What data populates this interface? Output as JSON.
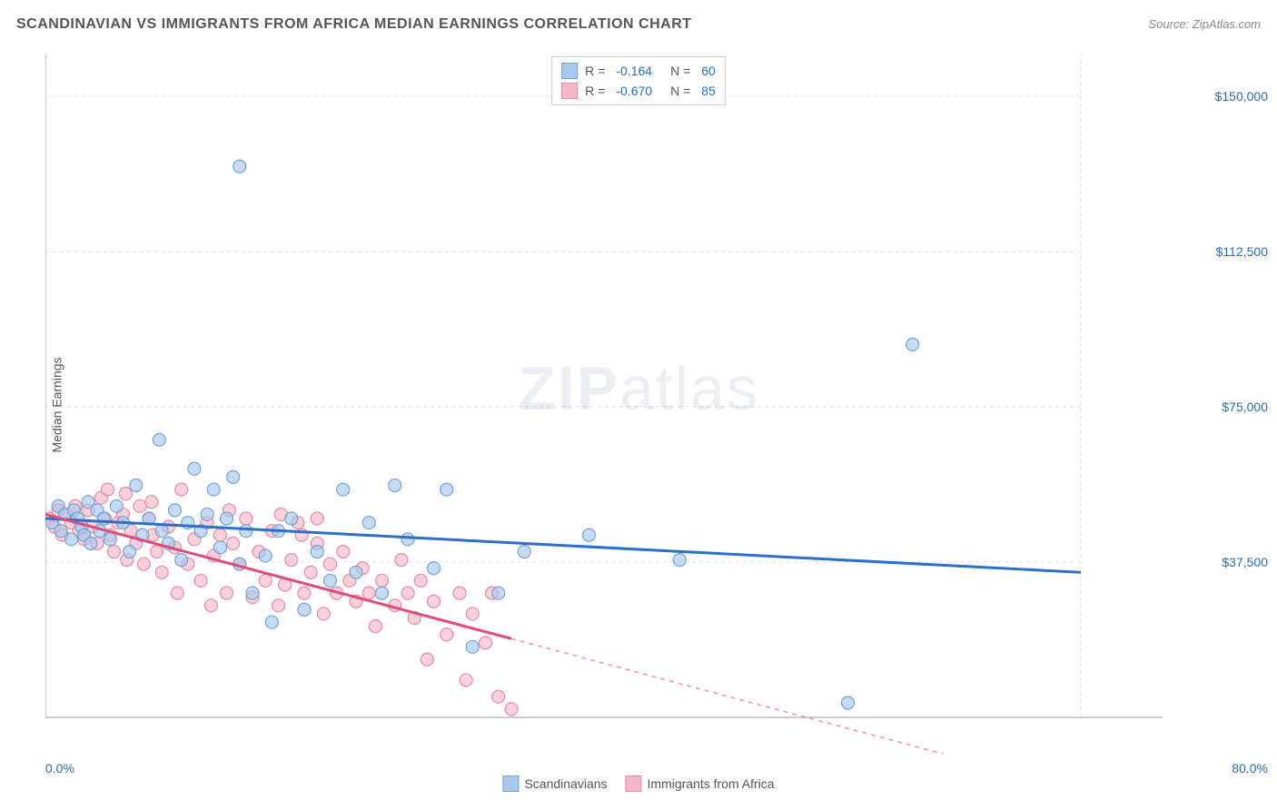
{
  "title": "SCANDINAVIAN VS IMMIGRANTS FROM AFRICA MEDIAN EARNINGS CORRELATION CHART",
  "source": "Source: ZipAtlas.com",
  "ylabel": "Median Earnings",
  "watermark_zip": "ZIP",
  "watermark_atlas": "atlas",
  "chart": {
    "type": "scatter",
    "xlim": [
      0,
      80
    ],
    "ylim": [
      0,
      160000
    ],
    "x_ticks": [
      {
        "v": 0,
        "label": "0.0%"
      },
      {
        "v": 80,
        "label": "80.0%"
      }
    ],
    "y_ticks": [
      {
        "v": 37500,
        "label": "$37,500"
      },
      {
        "v": 75000,
        "label": "$75,000"
      },
      {
        "v": 112500,
        "label": "$112,500"
      },
      {
        "v": 150000,
        "label": "$150,000"
      }
    ],
    "grid_color": "#e0e0e0",
    "axis_color": "#bbbbbb",
    "background_color": "#ffffff",
    "series": [
      {
        "name": "Scandinavians",
        "fill": "#a8c8ec",
        "stroke": "#6fa4d8",
        "line_color": "#2a6fc9",
        "R": "-0.164",
        "N": "60",
        "trend": {
          "x1": 0,
          "y1": 48000,
          "x2": 80,
          "y2": 35000,
          "extrapolate_from": 80
        },
        "points": [
          [
            0.5,
            47000
          ],
          [
            1,
            51000
          ],
          [
            1.2,
            45000
          ],
          [
            1.5,
            49000
          ],
          [
            2,
            43000
          ],
          [
            2.2,
            50000
          ],
          [
            2.5,
            48000
          ],
          [
            2.8,
            46000
          ],
          [
            3,
            44000
          ],
          [
            3.3,
            52000
          ],
          [
            3.5,
            42000
          ],
          [
            4,
            50000
          ],
          [
            4.2,
            45000
          ],
          [
            4.5,
            48000
          ],
          [
            5,
            43000
          ],
          [
            5.5,
            51000
          ],
          [
            6,
            47000
          ],
          [
            6.5,
            40000
          ],
          [
            7,
            56000
          ],
          [
            7.5,
            44000
          ],
          [
            8,
            48000
          ],
          [
            8.8,
            67000
          ],
          [
            9,
            45000
          ],
          [
            9.5,
            42000
          ],
          [
            10,
            50000
          ],
          [
            10.5,
            38000
          ],
          [
            11,
            47000
          ],
          [
            11.5,
            60000
          ],
          [
            12,
            45000
          ],
          [
            12.5,
            49000
          ],
          [
            13,
            55000
          ],
          [
            13.5,
            41000
          ],
          [
            14,
            48000
          ],
          [
            14.5,
            58000
          ],
          [
            15,
            37000
          ],
          [
            15.5,
            45000
          ],
          [
            15,
            133000
          ],
          [
            16,
            30000
          ],
          [
            17,
            39000
          ],
          [
            17.5,
            23000
          ],
          [
            18,
            45000
          ],
          [
            19,
            48000
          ],
          [
            20,
            26000
          ],
          [
            21,
            40000
          ],
          [
            22,
            33000
          ],
          [
            23,
            55000
          ],
          [
            24,
            35000
          ],
          [
            25,
            47000
          ],
          [
            26,
            30000
          ],
          [
            27,
            56000
          ],
          [
            28,
            43000
          ],
          [
            30,
            36000
          ],
          [
            31,
            55000
          ],
          [
            33,
            17000
          ],
          [
            35,
            30000
          ],
          [
            37,
            40000
          ],
          [
            42,
            44000
          ],
          [
            49,
            38000
          ],
          [
            62,
            3500
          ],
          [
            67,
            90000
          ]
        ]
      },
      {
        "name": "Immigrants from Africa",
        "fill": "#f5b8c8",
        "stroke": "#e889a5",
        "line_color": "#e14b7a",
        "R": "-0.670",
        "N": "85",
        "trend": {
          "x1": 0,
          "y1": 49000,
          "x2": 36,
          "y2": 19000,
          "extrapolate_from": 36
        },
        "points": [
          [
            0.3,
            48000
          ],
          [
            0.7,
            46000
          ],
          [
            1,
            50000
          ],
          [
            1.3,
            44000
          ],
          [
            1.6,
            49000
          ],
          [
            2,
            47000
          ],
          [
            2.3,
            51000
          ],
          [
            2.6,
            45000
          ],
          [
            3,
            43000
          ],
          [
            3.3,
            50000
          ],
          [
            3.6,
            46000
          ],
          [
            4,
            42000
          ],
          [
            4.3,
            53000
          ],
          [
            4.6,
            48000
          ],
          [
            5,
            44000
          ],
          [
            5.3,
            40000
          ],
          [
            5.6,
            47000
          ],
          [
            6,
            49000
          ],
          [
            6.3,
            38000
          ],
          [
            6.6,
            45000
          ],
          [
            7,
            42000
          ],
          [
            7.3,
            51000
          ],
          [
            7.6,
            37000
          ],
          [
            8,
            48000
          ],
          [
            8.3,
            44000
          ],
          [
            8.6,
            40000
          ],
          [
            9,
            35000
          ],
          [
            9.5,
            46000
          ],
          [
            10,
            41000
          ],
          [
            10.5,
            55000
          ],
          [
            11,
            37000
          ],
          [
            11.5,
            43000
          ],
          [
            12,
            33000
          ],
          [
            12.5,
            47000
          ],
          [
            13,
            39000
          ],
          [
            13.5,
            44000
          ],
          [
            14,
            30000
          ],
          [
            14.5,
            42000
          ],
          [
            15,
            37000
          ],
          [
            15.5,
            48000
          ],
          [
            16,
            29000
          ],
          [
            16.5,
            40000
          ],
          [
            17,
            33000
          ],
          [
            17.5,
            45000
          ],
          [
            18,
            27000
          ],
          [
            18.5,
            32000
          ],
          [
            19,
            38000
          ],
          [
            19.5,
            47000
          ],
          [
            20,
            30000
          ],
          [
            20.5,
            35000
          ],
          [
            21,
            42000
          ],
          [
            21.5,
            25000
          ],
          [
            22,
            37000
          ],
          [
            22.5,
            30000
          ],
          [
            23,
            40000
          ],
          [
            23.5,
            33000
          ],
          [
            24,
            28000
          ],
          [
            24.5,
            36000
          ],
          [
            25,
            30000
          ],
          [
            25.5,
            22000
          ],
          [
            26,
            33000
          ],
          [
            27,
            27000
          ],
          [
            27.5,
            38000
          ],
          [
            28,
            30000
          ],
          [
            28.5,
            24000
          ],
          [
            29,
            33000
          ],
          [
            29.5,
            14000
          ],
          [
            30,
            28000
          ],
          [
            31,
            20000
          ],
          [
            32,
            30000
          ],
          [
            32.5,
            9000
          ],
          [
            33,
            25000
          ],
          [
            34,
            18000
          ],
          [
            34.5,
            30000
          ],
          [
            35,
            5000
          ],
          [
            36,
            2000
          ],
          [
            21,
            48000
          ],
          [
            10.2,
            30000
          ],
          [
            12.8,
            27000
          ],
          [
            6.2,
            54000
          ],
          [
            8.2,
            52000
          ],
          [
            4.8,
            55000
          ],
          [
            14.2,
            50000
          ],
          [
            18.2,
            49000
          ],
          [
            19.8,
            44000
          ]
        ]
      }
    ],
    "marker_radius": 7,
    "marker_opacity": 0.65,
    "line_width": 3
  }
}
